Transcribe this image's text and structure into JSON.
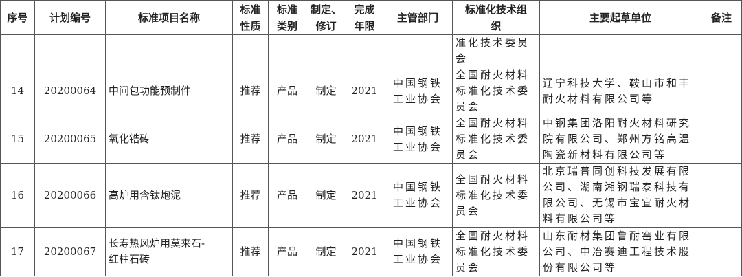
{
  "headers": [
    "序号",
    "计划编号",
    "标准项目名称",
    "标准\n性质",
    "标准\n类别",
    "制定、\n修订",
    "完成\n年限",
    "主管部门",
    "标准化技术组\n织",
    "主要起草单位",
    "备注"
  ],
  "rows": [
    {
      "no": "",
      "plan": "",
      "name": "",
      "nature": "",
      "category": "",
      "type": "",
      "year": "",
      "dept": "",
      "committee": "准化技术委员\n会",
      "drafters": "",
      "note": ""
    },
    {
      "no": "14",
      "plan": "20200064",
      "name": "中间包功能预制件",
      "nature": "推荐",
      "category": "产品",
      "type": "制定",
      "year": "2021",
      "dept": "中国钢铁\n工业协会",
      "committee": "全国耐火材料\n标准化技术委\n员会",
      "drafters": "辽宁科技大学、鞍山市和丰\n耐火材料有限公司等",
      "note": ""
    },
    {
      "no": "15",
      "plan": "20200065",
      "name": "氧化锆砖",
      "nature": "推荐",
      "category": "产品",
      "type": "制定",
      "year": "2021",
      "dept": "中国钢铁\n工业协会",
      "committee": "全国耐火材料\n标准化技术委\n员会",
      "drafters": "中钢集团洛阳耐火材料研究\n院有限公司、郑州方铭高温\n陶瓷新材料有限公司等",
      "note": ""
    },
    {
      "no": "16",
      "plan": "20200066",
      "name": "高炉用含钛炮泥",
      "nature": "推荐",
      "category": "产品",
      "type": "制定",
      "year": "2021",
      "dept": "中国钢铁\n工业协会",
      "committee": "全国耐火材料\n标准化技术委\n员会",
      "drafters": "北京瑞普同创科技发展有限\n公司、湖南湘钢瑞泰科技有\n限公司、无锡市宝宜耐火材\n料有限公司等",
      "note": ""
    },
    {
      "no": "17",
      "plan": "20200067",
      "name": "长寿热风炉用莫来石-\n红柱石砖",
      "nature": "推荐",
      "category": "产品",
      "type": "制定",
      "year": "2021",
      "dept": "中国钢铁\n工业协会",
      "committee": "全国耐火材料\n标准化技术委\n员会",
      "drafters": "山东耐材集团鲁耐窑业有限\n公司、中冶赛迪工程技术股\n份有限公司等",
      "note": ""
    }
  ]
}
